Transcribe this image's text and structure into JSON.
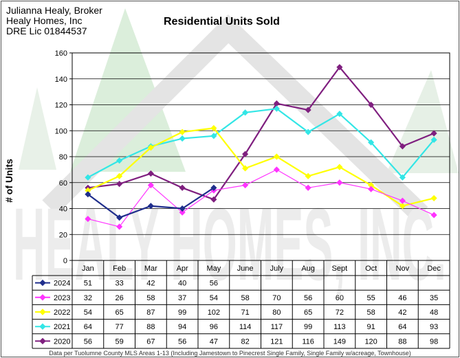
{
  "header": {
    "broker_name": "Julianna Healy, Broker",
    "company": "Healy Homes, Inc",
    "license": "DRE Lic 01844537"
  },
  "watermark": {
    "text": "HEALY HOMES, INC."
  },
  "footnote": "Data per Tuolumne County MLS Areas 1-13 (Including Jamestown to Pinecrest Single Family, Single Family w/acreage, Townhouse)",
  "chart_data": {
    "type": "line",
    "title": "Residential Units Sold",
    "xlabel": "",
    "ylabel": "# of Units",
    "ylim": [
      0,
      160
    ],
    "yticks": [
      0,
      20,
      40,
      60,
      80,
      100,
      120,
      140,
      160
    ],
    "grid": true,
    "legend": "data-table-left",
    "categories": [
      "Jan",
      "Feb",
      "Mar",
      "Apr",
      "May",
      "June",
      "July",
      "Aug",
      "Sept",
      "Oct",
      "Nov",
      "Dec"
    ],
    "series": [
      {
        "name": "2024",
        "color": "#1F2E8C",
        "marker": "diamond",
        "values": [
          51,
          33,
          42,
          40,
          56,
          null,
          null,
          null,
          null,
          null,
          null,
          null
        ]
      },
      {
        "name": "2023",
        "color": "#FF33FF",
        "marker": "diamond",
        "values": [
          32,
          26,
          58,
          37,
          54,
          58,
          70,
          56,
          60,
          55,
          46,
          35
        ]
      },
      {
        "name": "2022",
        "color": "#FFFF00",
        "marker": "diamond",
        "values": [
          54,
          65,
          87,
          99,
          102,
          71,
          80,
          65,
          72,
          58,
          42,
          48
        ]
      },
      {
        "name": "2021",
        "color": "#33E6E6",
        "marker": "diamond",
        "values": [
          64,
          77,
          88,
          94,
          96,
          114,
          117,
          99,
          113,
          91,
          64,
          93
        ]
      },
      {
        "name": "2020",
        "color": "#7F1F7F",
        "marker": "diamond",
        "values": [
          56,
          59,
          67,
          56,
          47,
          82,
          121,
          116,
          149,
          120,
          88,
          98
        ]
      }
    ]
  }
}
